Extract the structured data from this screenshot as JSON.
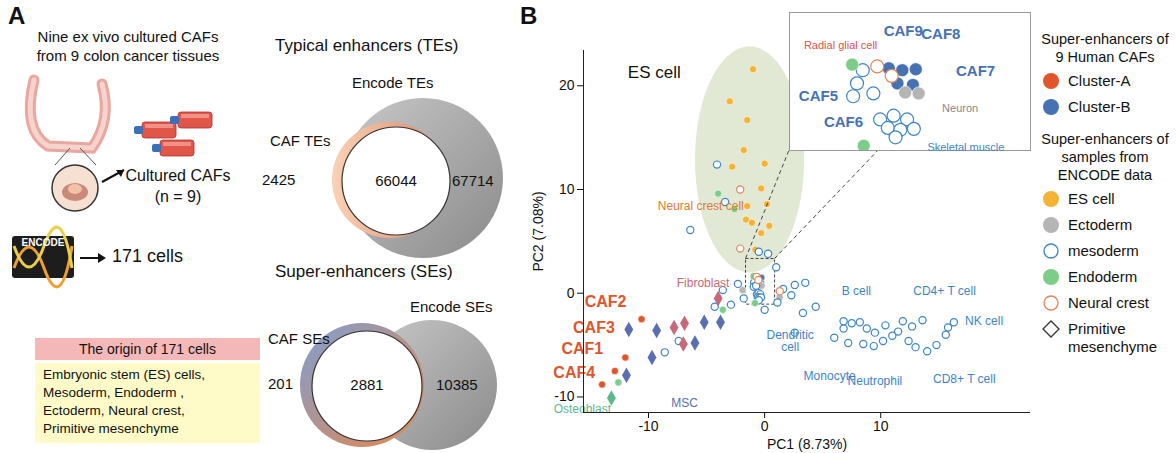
{
  "panel_a": {
    "label": "A",
    "intro": [
      "Nine ex vivo cultured CAFs",
      "from 9 colon cancer tissues"
    ],
    "cultured": [
      "Cultured CAFs",
      "(n = 9)"
    ],
    "encode_logo": "ENCODE",
    "encode_cells": "171 cells",
    "origin_title": "The origin of 171 cells",
    "origin_lines": [
      "Embryonic stem (ES) cells,",
      "Mesoderm, Endoderm ,",
      "Ectoderm, Neural crest,",
      "Primitive mesenchyme"
    ],
    "venn_te": {
      "title": "Typical enhancers (TEs)",
      "left_label": "CAF TEs",
      "right_label": "Encode TEs",
      "left_only": 2425,
      "both": 66044,
      "right_only": 67714
    },
    "venn_se": {
      "title": "Super-enhancers (SEs)",
      "left_label": "CAF SEs",
      "right_label": "Encode SEs",
      "left_only": 201,
      "both": 2881,
      "right_only": 10385
    }
  },
  "panel_b": {
    "label": "B"
  },
  "chart_data": [
    {
      "type": "scatter",
      "x_label": "PC1 (8.73%)",
      "y_label": "PC2 (7.08%)",
      "xlim": [
        -15.6,
        22.9
      ],
      "ylim": [
        -11.5,
        23.4
      ],
      "xticks": [
        -10,
        0,
        10
      ],
      "yticks": [
        -10,
        0,
        10,
        20
      ],
      "series": [
        {
          "name": "Cluster-A",
          "group": "Super-enhancers of 9 Human CAFs",
          "color": "#e0552b",
          "marker": "circle",
          "x": [
            -12.9,
            -10.6,
            -12.0,
            -14.0
          ],
          "y": [
            -7.5,
            -2.5,
            -6.2,
            -8.8
          ]
        },
        {
          "name": "Cluster-B",
          "group": "Super-enhancers of 9 Human CAFs",
          "color": "#4672b4",
          "marker": "circle",
          "x": [
            -0.57,
            -0.43,
            -0.29,
            -0.32,
            -0.48
          ],
          "y": [
            1.52,
            1.46,
            1.49,
            0.99,
            1.04
          ]
        },
        {
          "name": "ES cell",
          "group": "Super-enhancers of samples from ENCODE data",
          "color": "#f5b335",
          "marker": "circle",
          "x": [
            -1,
            -3,
            -1.5,
            -1.8,
            0,
            -2.8,
            -0.3,
            0.2,
            -1.5,
            -1.6,
            -1.1,
            0.4,
            -0.3,
            -0.8
          ],
          "y": [
            21.6,
            18.5,
            16.7,
            13.8,
            12.5,
            12.2,
            10.1,
            8.6,
            8.4,
            7.1,
            6.8,
            6.5,
            5.8,
            4.2
          ]
        },
        {
          "name": "Ectoderm",
          "group": "Super-enhancers of samples from ENCODE data",
          "color": "#b5b5b5",
          "marker": "circle",
          "x": [
            -0.4,
            -0.26,
            -1.9,
            1.3
          ],
          "y": [
            0.75,
            0.72,
            0.3,
            -0.4
          ]
        },
        {
          "name": "mesoderm",
          "group": "Super-enhancers of samples from ENCODE data",
          "color": "#3d85c6",
          "marker": "open_circle",
          "x": [
            -0.84,
            -0.9,
            -0.94,
            -0.73,
            -0.66,
            -0.52,
            -0.38,
            -0.58,
            -0.45,
            -0.31,
            -0.5,
            -4.1,
            -3.4,
            -6.4,
            -0.5,
            0.3,
            1,
            1.6,
            2.6,
            3.5,
            2.3,
            -2.3,
            -3.6,
            -1.8,
            -2.9,
            1.1,
            -4.3,
            0,
            2.6,
            6,
            6.8,
            7.2,
            6.8,
            7.5,
            8.2,
            8.8,
            9.5,
            8.5,
            9.4,
            10.2,
            11.9,
            12.7,
            13.6,
            11.5,
            15.8,
            16.3,
            15.6,
            13,
            14,
            14.8,
            12.4,
            10.4,
            11,
            4.4,
            3.3,
            -7.4,
            -8.6
          ],
          "y": [
            1.46,
            1.04,
            0.63,
            0.72,
            -0.11,
            0.01,
            -0.11,
            -0.38,
            -0.44,
            -0.41,
            -0.68,
            12.4,
            8.8,
            6.1,
            4.0,
            3.8,
            2.5,
            0.4,
            0.8,
            1.0,
            -0.2,
            0.9,
            0.3,
            -0.5,
            -1.1,
            -0.9,
            -1.3,
            -1.6,
            -3.8,
            -4.3,
            -3.4,
            -4.8,
            -2.7,
            -2.9,
            -2.8,
            -3.4,
            -3.8,
            -4.9,
            -5.1,
            -4.6,
            -2.7,
            -3.2,
            -2.6,
            -3.7,
            -3.3,
            -2.8,
            -4.0,
            -5.2,
            -5.6,
            -5.0,
            -4.6,
            -3.1,
            -4.1,
            -1.3,
            -1.9,
            -4.6,
            -5.7
          ]
        },
        {
          "name": "Endoderm",
          "group": "Super-enhancers of samples from ENCODE data",
          "color": "#7ccc8a",
          "marker": "circle",
          "x": [
            -0.95,
            -0.83,
            -4,
            -2.6,
            -3.6,
            -12.6
          ],
          "y": [
            1.64,
            -0.95,
            9.6,
            8.1,
            -1.6,
            -8.6
          ]
        },
        {
          "name": "Neural crest",
          "group": "Super-enhancers of samples from ENCODE data",
          "color": "#e8825a",
          "marker": "open_circle",
          "x": [
            -0.69,
            -0.54,
            -2.1,
            -2.1,
            1.3
          ],
          "y": [
            1.58,
            1.28,
            10,
            4.3,
            0.2
          ]
        },
        {
          "name": "Primitive mesenchyme",
          "group": "Super-enhancers of samples from ENCODE data",
          "color": "#333333",
          "marker": "diamond",
          "x": [
            -11.7,
            -9.7,
            -11.9,
            -9.3,
            -7.8,
            -6.9,
            -4.0,
            -6.0,
            -3.8,
            -5.2,
            -7.0,
            -13.2
          ],
          "y": [
            -3.5,
            -6.2,
            -7.9,
            -3.6,
            -3.3,
            -2.9,
            -0.5,
            -4.8,
            -2.8,
            -2.8,
            -4.9,
            -10.1
          ],
          "colors": [
            "#5a6fb0",
            "#5a6fb0",
            "#5a6fb0",
            "#5a6fb0",
            "#c8697a",
            "#c8697a",
            "#c8697a",
            "#5a6fb0",
            "#5a6fb0",
            "#5a6fb0",
            "#c8697a",
            "#5fb88d"
          ]
        }
      ],
      "annotations": [
        {
          "text": "ES cell",
          "x": -9.5,
          "y": 21.3,
          "color": "#111111",
          "font": "large"
        },
        {
          "text": "Neural crest cell",
          "x": -5.5,
          "y": 8.4,
          "color": "#e07a2f",
          "font": "normal"
        },
        {
          "text": "Fibroblast",
          "x": -5.3,
          "y": 1.0,
          "color": "#c8697a",
          "font": "normal"
        },
        {
          "text": "CAF2",
          "x": -13.7,
          "y": -0.8,
          "color": "#e0552b",
          "font": "bold"
        },
        {
          "text": "CAF3",
          "x": -14.7,
          "y": -3.3,
          "color": "#e0552b",
          "font": "bold"
        },
        {
          "text": "CAF1",
          "x": -15.7,
          "y": -5.4,
          "color": "#e0552b",
          "font": "bold"
        },
        {
          "text": "CAF4",
          "x": -16.4,
          "y": -7.7,
          "color": "#e0552b",
          "font": "bold"
        },
        {
          "text": "Osteoblast",
          "x": -15.7,
          "y": -11.2,
          "color": "#5fb88d",
          "font": "normal"
        },
        {
          "text": "MSC",
          "x": -6.9,
          "y": -10.6,
          "color": "#5a6fb0",
          "font": "normal"
        },
        {
          "text": "Dendritic\ncell",
          "x": 2.2,
          "y": -4.6,
          "color": "#3d85c6",
          "font": "normal"
        },
        {
          "text": "Monocyte",
          "x": 5.6,
          "y": -8.0,
          "color": "#3d85c6",
          "font": "normal"
        },
        {
          "text": "Neutrophil",
          "x": 9.5,
          "y": -8.5,
          "color": "#3d85c6",
          "font": "normal"
        },
        {
          "text": "B cell",
          "x": 7.9,
          "y": 0.2,
          "color": "#3d85c6",
          "font": "normal"
        },
        {
          "text": "CD4+ T cell",
          "x": 15.5,
          "y": 0.2,
          "color": "#3d85c6",
          "font": "normal"
        },
        {
          "text": "NK cell",
          "x": 18.9,
          "y": -2.7,
          "color": "#3d85c6",
          "font": "normal"
        },
        {
          "text": "CD8+ T cell",
          "x": 17.2,
          "y": -8.3,
          "color": "#3d85c6",
          "font": "normal"
        }
      ]
    },
    {
      "type": "scatter",
      "xlim": [
        -1.6,
        0.9
      ],
      "ylim": [
        -1.1,
        3.3
      ],
      "tick_labels": false,
      "annotations": [
        {
          "text": "Radial glial cell",
          "x": -1.07,
          "y": 2.26,
          "color": "#d9534f",
          "font": "normal"
        },
        {
          "text": "CAF9",
          "x": -0.42,
          "y": 2.71,
          "color": "#4672b4",
          "font": "bold"
        },
        {
          "text": "CAF8",
          "x": -0.03,
          "y": 2.62,
          "color": "#4672b4",
          "font": "bold"
        },
        {
          "text": "CAF7",
          "x": 0.33,
          "y": 1.43,
          "color": "#4672b4",
          "font": "bold"
        },
        {
          "text": "CAF5",
          "x": -1.3,
          "y": 0.63,
          "color": "#4672b4",
          "font": "bold"
        },
        {
          "text": "CAF6",
          "x": -1.04,
          "y": -0.2,
          "color": "#4672b4",
          "font": "bold"
        },
        {
          "text": "Neuron",
          "x": 0.17,
          "y": 0.24,
          "color": "#888888",
          "font": "normal"
        },
        {
          "text": "Skeletal muscle",
          "x": 0.23,
          "y": -1.0,
          "color": "#3d85c6",
          "font": "normal"
        }
      ]
    }
  ]
}
